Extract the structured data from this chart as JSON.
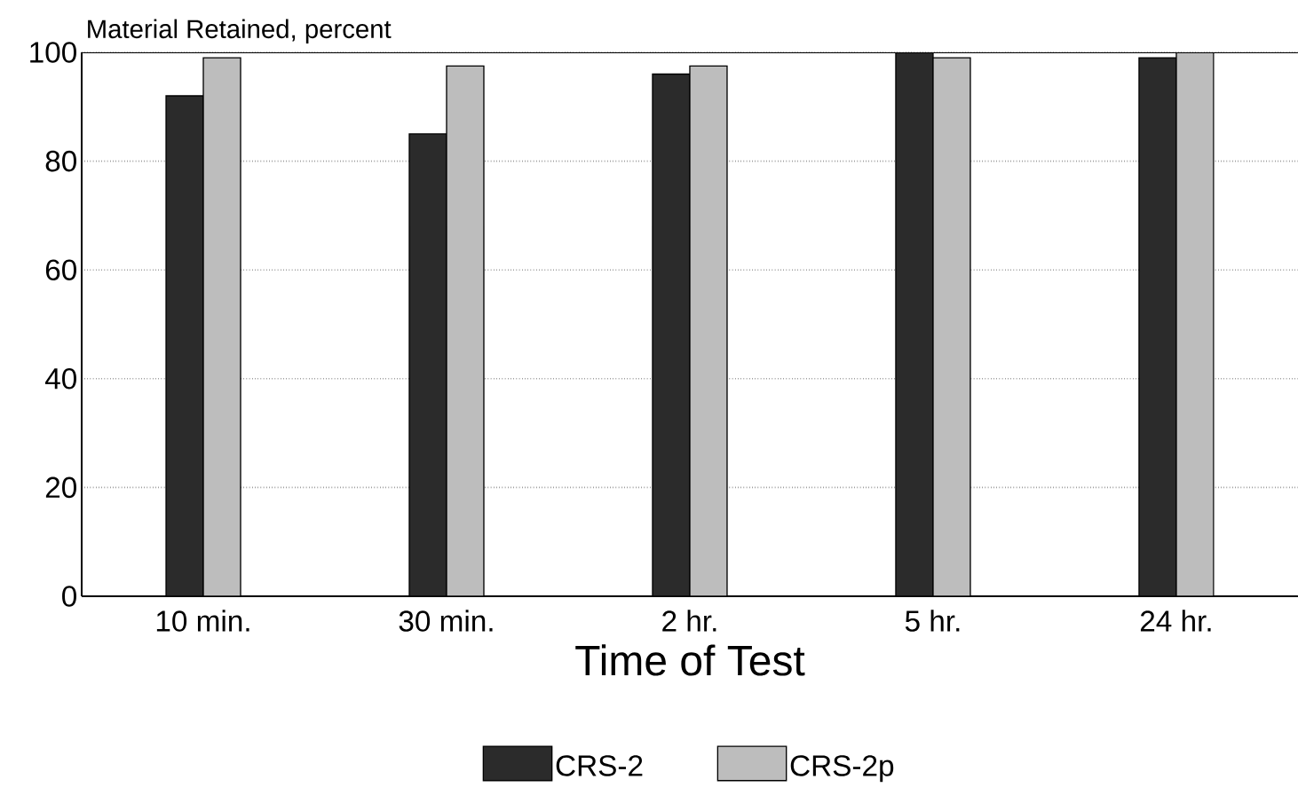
{
  "chart_data": {
    "type": "bar",
    "xlabel": "Time of Test",
    "ylabel": "Material Retained, percent",
    "categories": [
      "10 min.",
      "30 min.",
      "2 hr.",
      "5 hr.",
      "24 hr."
    ],
    "series": [
      {
        "name": "CRS-2",
        "color": "#2b2b2b",
        "values": [
          92,
          85,
          96,
          100,
          99
        ]
      },
      {
        "name": "CRS-2p",
        "color": "#bdbdbd",
        "values": [
          99,
          97.5,
          97.5,
          99,
          100
        ]
      }
    ],
    "ylim": [
      0,
      100
    ],
    "yticks": [
      0,
      20,
      40,
      60,
      80,
      100
    ],
    "grid": "y",
    "legend": "bottom"
  }
}
